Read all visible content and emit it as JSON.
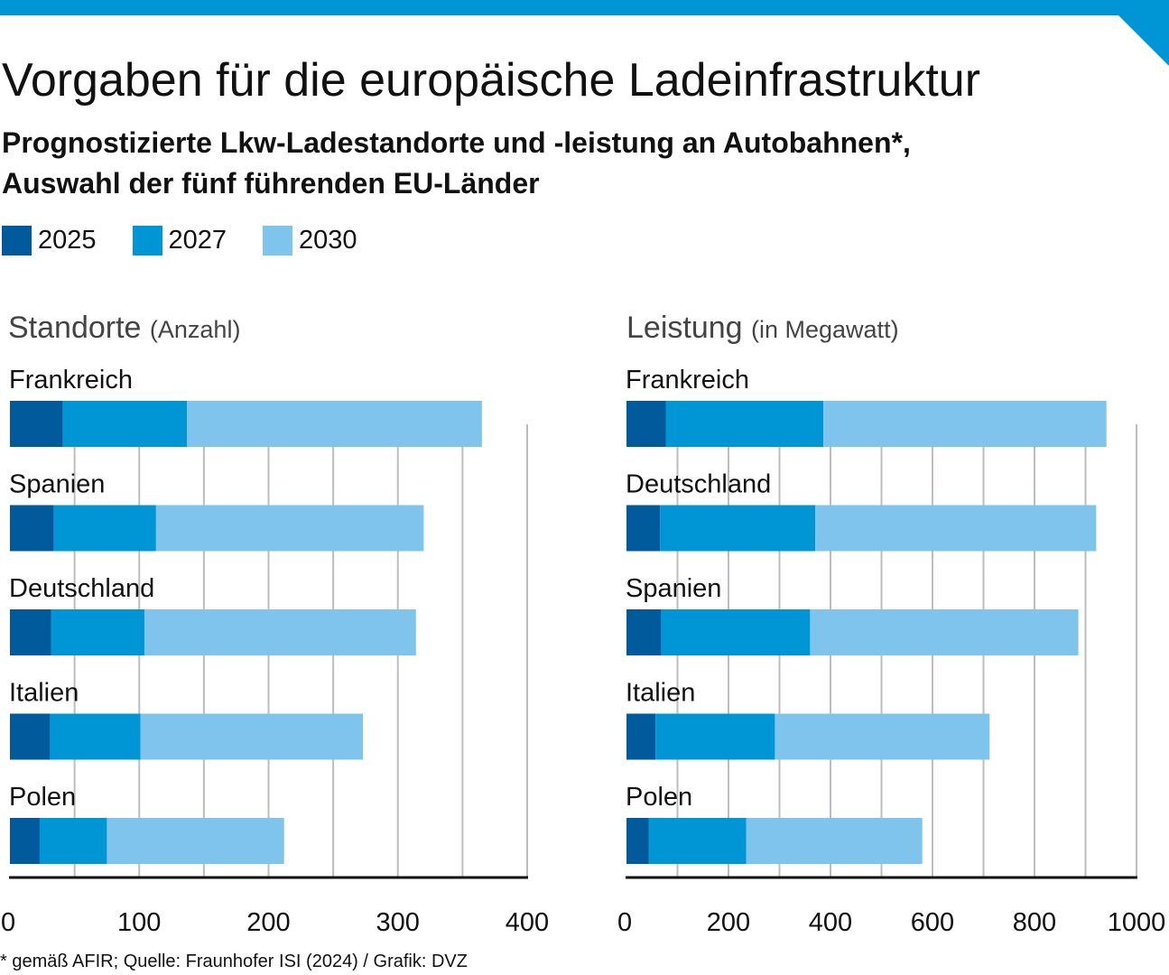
{
  "header": {
    "title": "Vorgaben für die europäische Ladeinfrastruktur",
    "subtitle_line1": "Prognostizierte Lkw-Ladestandorte und -leistung an Autobahnen*,",
    "subtitle_line2": "Auswahl der fünf führenden EU-Länder"
  },
  "legend": [
    {
      "label": "2025",
      "color": "#005a9c"
    },
    {
      "label": "2027",
      "color": "#0096d6"
    },
    {
      "label": "2030",
      "color": "#7fc4ec"
    }
  ],
  "chart_data": [
    {
      "type": "bar",
      "stacked": true,
      "orientation": "horizontal",
      "title": "Standorte",
      "title_unit": "(Anzahl)",
      "categories": [
        "Frankreich",
        "Spanien",
        "Deutschland",
        "Italien",
        "Polen"
      ],
      "series": [
        {
          "name": "2025",
          "values": [
            41,
            34,
            32,
            31,
            23
          ]
        },
        {
          "name": "2027",
          "values": [
            96,
            79,
            72,
            70,
            52
          ]
        },
        {
          "name": "2030",
          "values": [
            228,
            207,
            210,
            172,
            137
          ]
        }
      ],
      "xlim": [
        0,
        400
      ],
      "ticks": [
        0,
        100,
        200,
        300,
        400
      ],
      "grid": true
    },
    {
      "type": "bar",
      "stacked": true,
      "orientation": "horizontal",
      "title": "Leistung",
      "title_unit": "(in Megawatt)",
      "categories": [
        "Frankreich",
        "Deutschland",
        "Spanien",
        "Italien",
        "Polen"
      ],
      "series": [
        {
          "name": "2025",
          "values": [
            77,
            66,
            68,
            57,
            44
          ]
        },
        {
          "name": "2027",
          "values": [
            309,
            304,
            292,
            234,
            191
          ]
        },
        {
          "name": "2030",
          "values": [
            555,
            551,
            526,
            421,
            345
          ]
        }
      ],
      "xlim": [
        0,
        1000
      ],
      "ticks": [
        0,
        200,
        400,
        600,
        800,
        1000
      ],
      "grid": true
    }
  ],
  "footnote": "* gemäß AFIR; Quelle: Fraunhofer ISI (2024) / Grafik: DVZ"
}
